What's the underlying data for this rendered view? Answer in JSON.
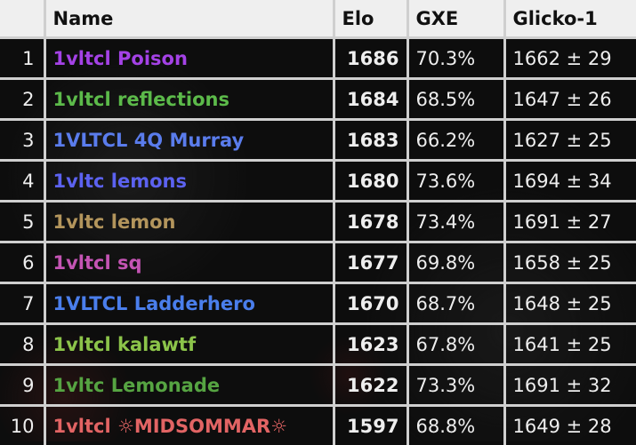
{
  "headers": {
    "rank": "",
    "name": "Name",
    "elo": "Elo",
    "gxe": "GXE",
    "glicko": "Glicko-1"
  },
  "rows": [
    {
      "rank": "1",
      "name": "1vltcl Poison",
      "color": "#a442e6",
      "elo": "1686",
      "gxe": "70.3%",
      "glicko": "1662 ± 29"
    },
    {
      "rank": "2",
      "name": "1vltcl reflections",
      "color": "#5cba4a",
      "elo": "1684",
      "gxe": "68.5%",
      "glicko": "1647 ± 26"
    },
    {
      "rank": "3",
      "name": "1VLTCL 4Q Murray",
      "color": "#5a7cec",
      "elo": "1683",
      "gxe": "66.2%",
      "glicko": "1627 ± 25"
    },
    {
      "rank": "4",
      "name": "1vltc lemons",
      "color": "#5c62f0",
      "elo": "1680",
      "gxe": "73.6%",
      "glicko": "1694 ± 34"
    },
    {
      "rank": "5",
      "name": "1vltc lemon",
      "color": "#b3955c",
      "elo": "1678",
      "gxe": "73.4%",
      "glicko": "1691 ± 27"
    },
    {
      "rank": "6",
      "name": "1vltcl sq",
      "color": "#c454b4",
      "elo": "1677",
      "gxe": "69.8%",
      "glicko": "1658 ± 25"
    },
    {
      "rank": "7",
      "name": "1VLTCL Ladderhero",
      "color": "#4a7eec",
      "elo": "1670",
      "gxe": "68.7%",
      "glicko": "1648 ± 25"
    },
    {
      "rank": "8",
      "name": "1vltcl kalawtf",
      "color": "#8cc44a",
      "elo": "1623",
      "gxe": "67.8%",
      "glicko": "1641 ± 25"
    },
    {
      "rank": "9",
      "name": "1vltc Lemonade",
      "color": "#56a442",
      "elo": "1622",
      "gxe": "73.3%",
      "glicko": "1691 ± 32"
    },
    {
      "rank": "10",
      "name": "1vltcl ☼MIDSOMMAR☼",
      "color": "#e26464",
      "elo": "1597",
      "gxe": "68.8%",
      "glicko": "1649 ± 28"
    }
  ]
}
